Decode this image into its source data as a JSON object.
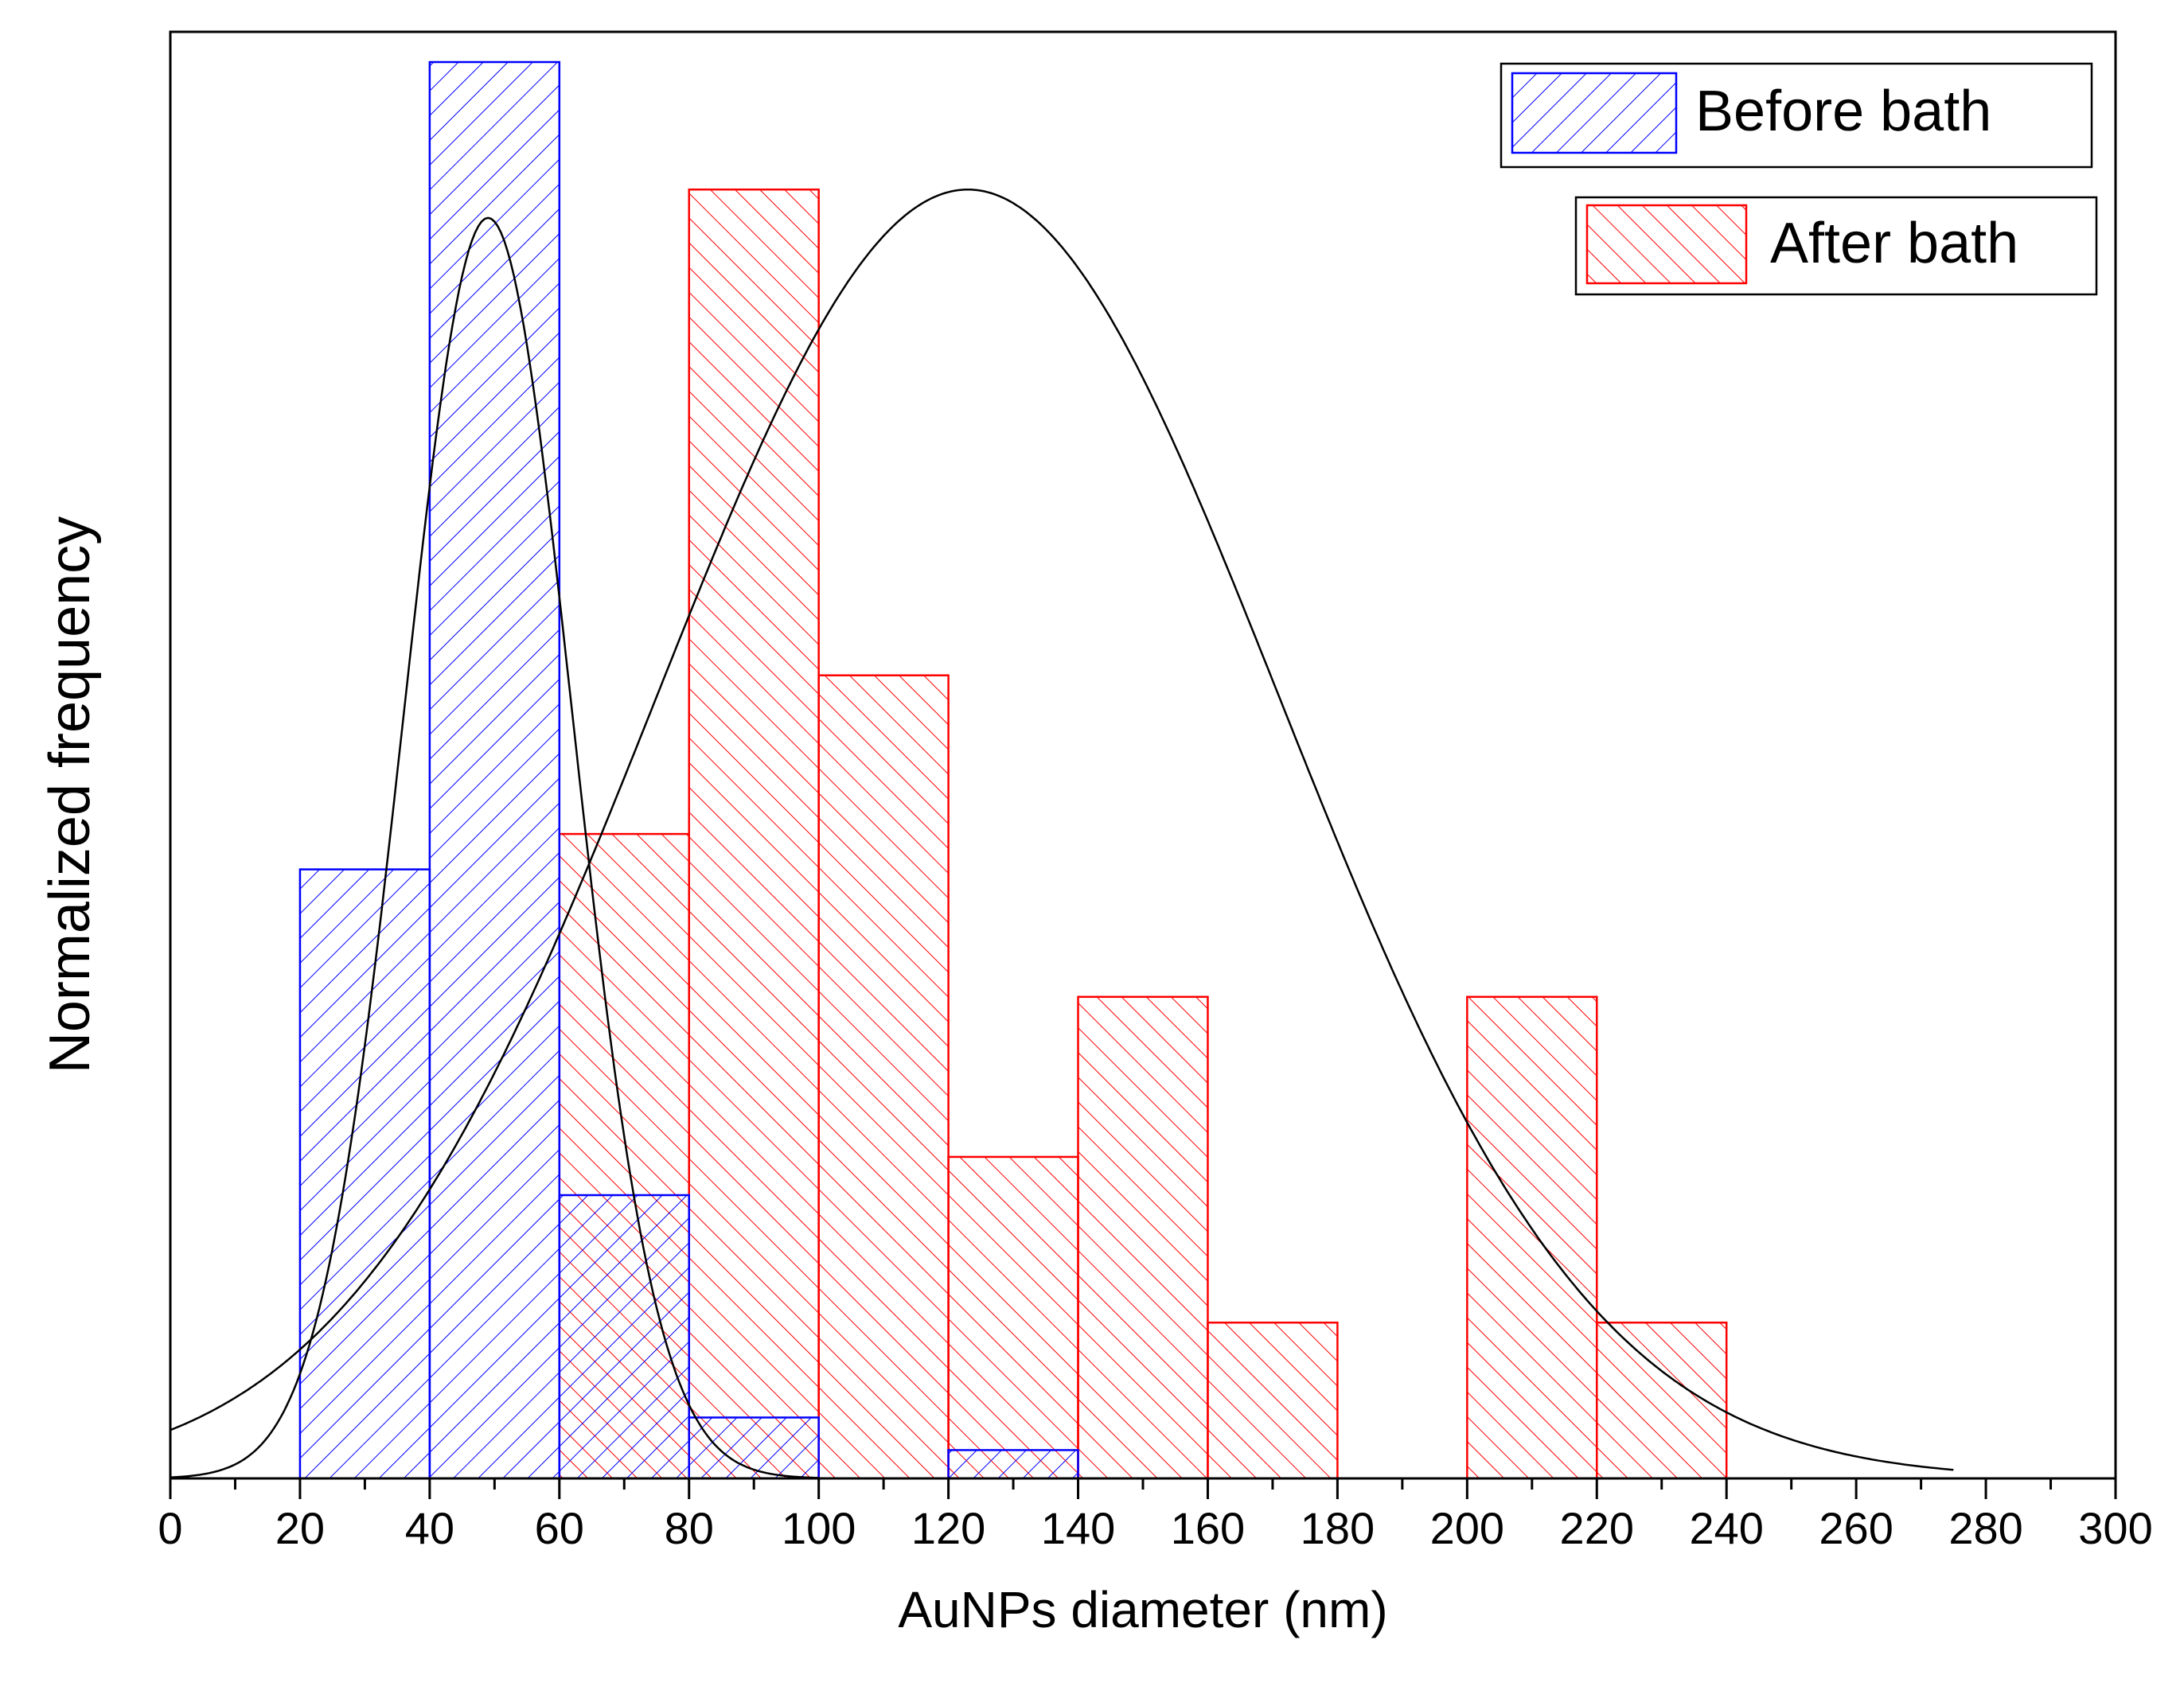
{
  "chart_data": {
    "type": "bar",
    "title": "",
    "xlabel": "AuNPs diameter (nm)",
    "ylabel": "Normalized frequency",
    "xlim": [
      0,
      300
    ],
    "ylim": [
      0,
      1.0
    ],
    "xticks": [
      "0",
      "20",
      "40",
      "60",
      "80",
      "100",
      "120",
      "140",
      "160",
      "180",
      "200",
      "220",
      "240",
      "260",
      "280",
      "300"
    ],
    "xtick_step": 20,
    "xminor_step": 10,
    "grid": false,
    "legend_position": "top-right",
    "bin_edges": [
      0,
      20,
      40,
      60,
      80,
      100,
      120,
      140,
      160,
      180,
      200,
      220,
      240
    ],
    "series": [
      {
        "name": "Before bath",
        "color": "#0000ff",
        "hatch": "forward-diagonal",
        "values": [
          0,
          0.43,
          1.0,
          0.2,
          0.043,
          0,
          0.02,
          0,
          0,
          0,
          0,
          0
        ]
      },
      {
        "name": "After bath",
        "color": "#ff0000",
        "hatch": "backward-diagonal",
        "values": [
          0,
          0,
          0,
          0.455,
          0.91,
          0.567,
          0.227,
          0.34,
          0.11,
          0,
          0.34,
          0.11
        ]
      }
    ],
    "fits": [
      {
        "series": "Before bath",
        "type": "gaussian",
        "color": "#000000",
        "x_range": [
          0,
          100
        ],
        "mean": 49,
        "sigma": 13,
        "peak": 0.89
      },
      {
        "series": "After bath",
        "type": "gaussian",
        "color": "#000000",
        "x_range": [
          0,
          275
        ],
        "mean": 123,
        "sigma": 48,
        "peak": 0.91
      }
    ]
  }
}
